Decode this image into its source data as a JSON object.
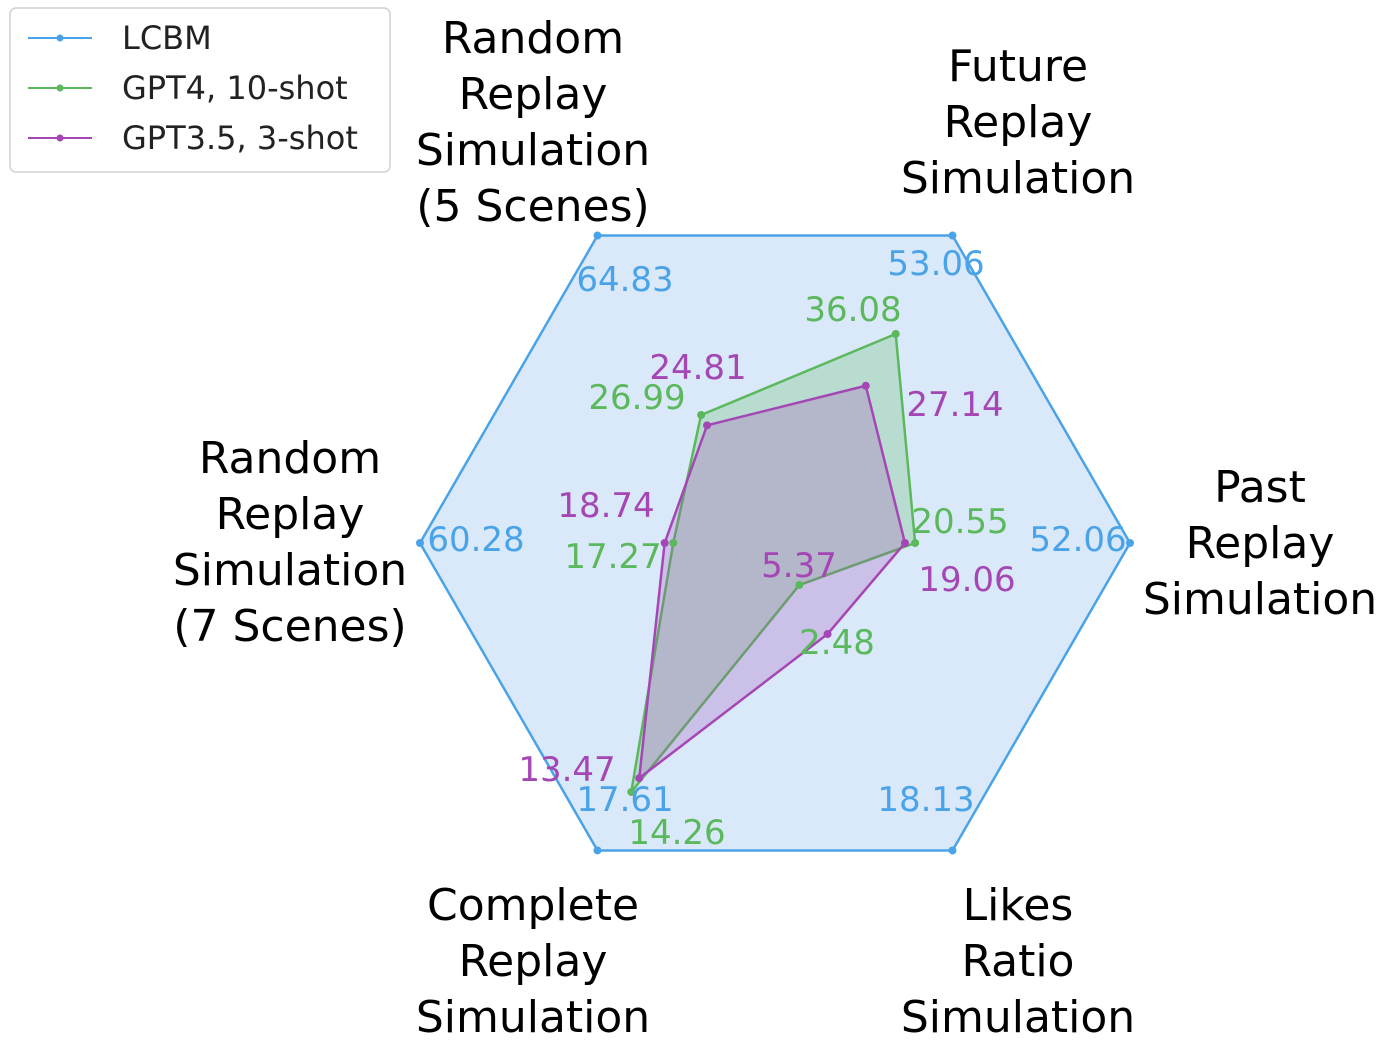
{
  "chart_data": {
    "type": "radar",
    "axes": [
      {
        "label": [
          "Past",
          "Replay",
          "Simulation"
        ]
      },
      {
        "label": [
          "Future",
          "Replay",
          "Simulation"
        ]
      },
      {
        "label": [
          "Random",
          "Replay",
          "Simulation",
          "(5 Scenes)"
        ]
      },
      {
        "label": [
          "Random",
          "Replay",
          "Simulation",
          "(7 Scenes)"
        ]
      },
      {
        "label": [
          "Complete",
          "Replay",
          "Simulation"
        ]
      },
      {
        "label": [
          "Likes",
          "Ratio",
          "Simulation"
        ]
      }
    ],
    "series": [
      {
        "name": "LCBM",
        "color": "#4aa3e8",
        "fill": "#d9e9f9",
        "values": [
          52.06,
          53.06,
          64.83,
          60.28,
          17.61,
          18.13
        ],
        "labels": [
          "52.06",
          "53.06",
          "64.83",
          "60.28",
          "17.61",
          "18.13"
        ]
      },
      {
        "name": "GPT4, 10-shot",
        "color": "#5cb85c",
        "fill": "rgba(92,184,92,0.25)",
        "values": [
          20.55,
          36.08,
          26.99,
          17.27,
          14.26,
          2.48
        ],
        "labels": [
          "20.55",
          "36.08",
          "26.99",
          "17.27",
          "14.26",
          "2.48"
        ]
      },
      {
        "name": "GPT3.5, 3-shot",
        "color": "#a546b5",
        "fill": "rgba(165,70,181,0.25)",
        "values": [
          19.06,
          27.14,
          24.81,
          18.74,
          13.47,
          5.37
        ],
        "labels": [
          "19.06",
          "27.14",
          "24.81",
          "18.74",
          "13.47",
          "5.37"
        ]
      }
    ],
    "legend": {
      "position": "top-left"
    }
  }
}
